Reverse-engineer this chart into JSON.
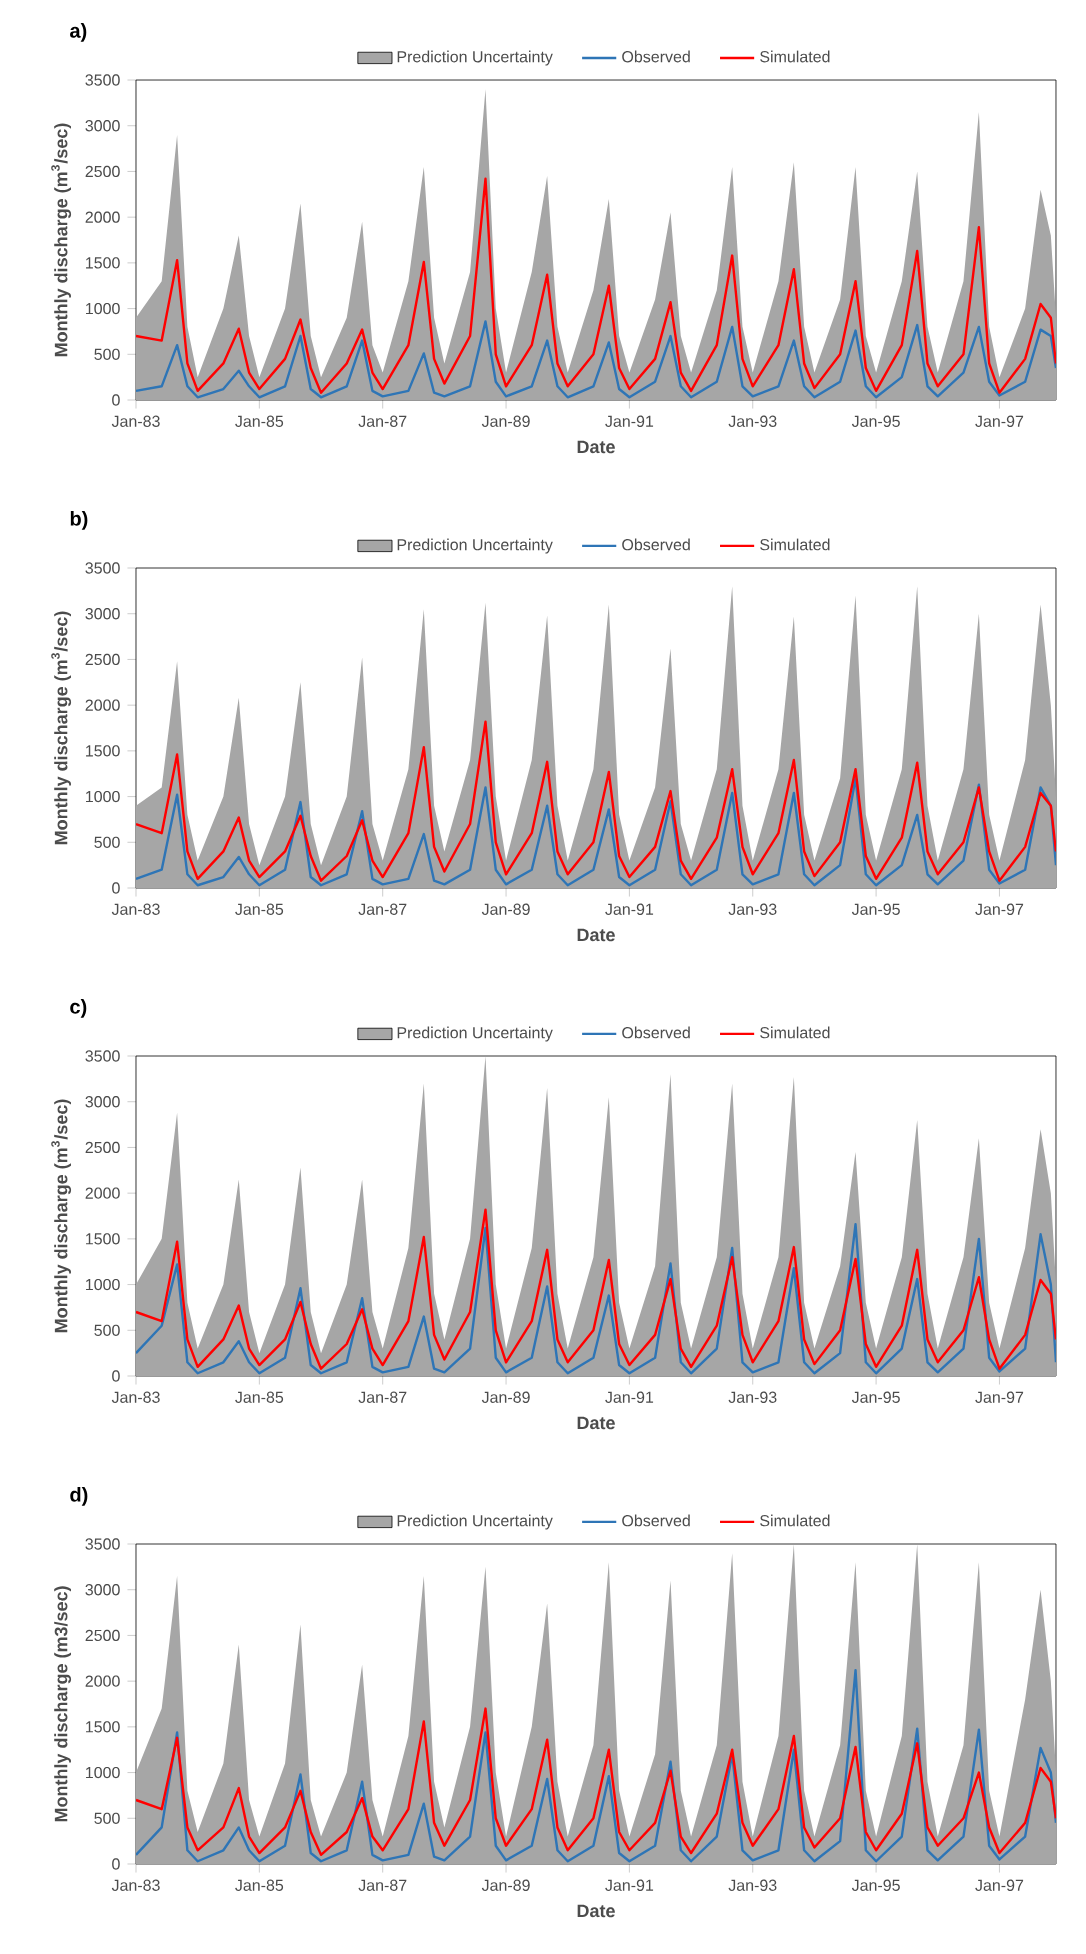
{
  "chart_data": [
    {
      "type": "line",
      "title": "a)",
      "xlabel": "Date",
      "ylabel": "Monthly discharge (m$^{3}$/sec)",
      "legend": "top",
      "x": [
        "1983-01",
        "1983-06",
        "1983-09",
        "1983-11",
        "1984-01",
        "1984-06",
        "1984-09",
        "1984-11",
        "1985-01",
        "1985-06",
        "1985-09",
        "1985-11",
        "1986-01",
        "1986-06",
        "1986-09",
        "1986-11",
        "1987-01",
        "1987-06",
        "1987-09",
        "1987-11",
        "1988-01",
        "1988-06",
        "1988-09",
        "1988-11",
        "1989-01",
        "1989-06",
        "1989-09",
        "1989-11",
        "1990-01",
        "1990-06",
        "1990-09",
        "1990-11",
        "1991-01",
        "1991-06",
        "1991-09",
        "1991-11",
        "1992-01",
        "1992-06",
        "1992-09",
        "1992-11",
        "1993-01",
        "1993-06",
        "1993-09",
        "1993-11",
        "1994-01",
        "1994-06",
        "1994-09",
        "1994-11",
        "1995-01",
        "1995-06",
        "1995-09",
        "1995-11",
        "1996-01",
        "1996-06",
        "1996-09",
        "1996-11",
        "1997-01",
        "1997-06",
        "1997-09",
        "1997-11",
        "1997-12"
      ],
      "xlim": [
        "1983-01",
        "1997-12"
      ],
      "xticks": [
        {
          "value": "1983-01",
          "label": "Jan-83"
        },
        {
          "value": "1985-01",
          "label": "Jan-85"
        },
        {
          "value": "1987-01",
          "label": "Jan-87"
        },
        {
          "value": "1989-01",
          "label": "Jan-89"
        },
        {
          "value": "1991-01",
          "label": "Jan-91"
        },
        {
          "value": "1993-01",
          "label": "Jan-93"
        },
        {
          "value": "1995-01",
          "label": "Jan-95"
        },
        {
          "value": "1997-01",
          "label": "Jan-97"
        }
      ],
      "ylim": [
        0,
        3500
      ],
      "yticks": [
        0,
        500,
        1000,
        1500,
        2000,
        2500,
        3000,
        3500
      ],
      "series": [
        {
          "name": "Prediction Uncertainty",
          "type": "area",
          "color": "#a6a6a6",
          "values": [
            900,
            1300,
            2900,
            800,
            250,
            1000,
            1800,
            700,
            250,
            1000,
            2150,
            700,
            250,
            900,
            1950,
            600,
            300,
            1300,
            2550,
            900,
            400,
            1400,
            3400,
            1000,
            300,
            1400,
            2450,
            800,
            300,
            1200,
            2200,
            700,
            300,
            1100,
            2050,
            700,
            300,
            1200,
            2550,
            800,
            300,
            1300,
            2600,
            800,
            300,
            1100,
            2550,
            700,
            300,
            1300,
            2500,
            800,
            300,
            1300,
            3150,
            800,
            250,
            1000,
            2300,
            1800,
            900
          ]
        },
        {
          "name": "Observed",
          "color": "#2e75b6",
          "values": [
            100,
            150,
            600,
            150,
            30,
            120,
            320,
            150,
            30,
            150,
            700,
            120,
            30,
            150,
            650,
            100,
            40,
            100,
            510,
            80,
            40,
            150,
            860,
            200,
            40,
            150,
            650,
            150,
            30,
            150,
            630,
            120,
            30,
            200,
            700,
            150,
            30,
            200,
            800,
            150,
            40,
            150,
            650,
            150,
            30,
            200,
            760,
            150,
            30,
            250,
            820,
            150,
            40,
            300,
            800,
            200,
            50,
            200,
            770,
            700,
            350
          ]
        },
        {
          "name": "Simulated",
          "color": "#ff0000",
          "values": [
            700,
            650,
            1530,
            400,
            100,
            400,
            780,
            300,
            120,
            450,
            880,
            350,
            80,
            400,
            770,
            300,
            120,
            600,
            1510,
            450,
            180,
            700,
            2420,
            500,
            150,
            600,
            1370,
            400,
            150,
            500,
            1250,
            350,
            120,
            450,
            1070,
            300,
            100,
            600,
            1580,
            450,
            150,
            600,
            1430,
            400,
            130,
            500,
            1300,
            350,
            100,
            600,
            1630,
            400,
            150,
            500,
            1890,
            400,
            80,
            450,
            1050,
            900,
            400
          ]
        }
      ]
    },
    {
      "type": "line",
      "title": "b)",
      "xlabel": "Date",
      "ylabel": "Monthly discharge (m$^{3}$/sec)",
      "legend": "top",
      "x": [
        "1983-01",
        "1983-06",
        "1983-09",
        "1983-11",
        "1984-01",
        "1984-06",
        "1984-09",
        "1984-11",
        "1985-01",
        "1985-06",
        "1985-09",
        "1985-11",
        "1986-01",
        "1986-06",
        "1986-09",
        "1986-11",
        "1987-01",
        "1987-06",
        "1987-09",
        "1987-11",
        "1988-01",
        "1988-06",
        "1988-09",
        "1988-11",
        "1989-01",
        "1989-06",
        "1989-09",
        "1989-11",
        "1990-01",
        "1990-06",
        "1990-09",
        "1990-11",
        "1991-01",
        "1991-06",
        "1991-09",
        "1991-11",
        "1992-01",
        "1992-06",
        "1992-09",
        "1992-11",
        "1993-01",
        "1993-06",
        "1993-09",
        "1993-11",
        "1994-01",
        "1994-06",
        "1994-09",
        "1994-11",
        "1995-01",
        "1995-06",
        "1995-09",
        "1995-11",
        "1996-01",
        "1996-06",
        "1996-09",
        "1996-11",
        "1997-01",
        "1997-06",
        "1997-09",
        "1997-11",
        "1997-12"
      ],
      "xlim": [
        "1983-01",
        "1997-12"
      ],
      "xticks": [
        {
          "value": "1983-01",
          "label": "Jan-83"
        },
        {
          "value": "1985-01",
          "label": "Jan-85"
        },
        {
          "value": "1987-01",
          "label": "Jan-87"
        },
        {
          "value": "1989-01",
          "label": "Jan-89"
        },
        {
          "value": "1991-01",
          "label": "Jan-91"
        },
        {
          "value": "1993-01",
          "label": "Jan-93"
        },
        {
          "value": "1995-01",
          "label": "Jan-95"
        },
        {
          "value": "1997-01",
          "label": "Jan-97"
        }
      ],
      "ylim": [
        0,
        3500
      ],
      "yticks": [
        0,
        500,
        1000,
        1500,
        2000,
        2500,
        3000,
        3500
      ],
      "series": [
        {
          "name": "Prediction Uncertainty",
          "type": "area",
          "color": "#a6a6a6",
          "values": [
            900,
            1100,
            2480,
            800,
            300,
            1000,
            2080,
            700,
            250,
            1000,
            2250,
            700,
            250,
            1000,
            2520,
            700,
            300,
            1300,
            3050,
            900,
            400,
            1400,
            3120,
            1000,
            300,
            1400,
            2980,
            900,
            300,
            1300,
            3100,
            800,
            300,
            1100,
            2620,
            700,
            300,
            1300,
            3300,
            900,
            300,
            1300,
            2970,
            800,
            300,
            1200,
            3200,
            800,
            300,
            1300,
            3300,
            900,
            300,
            1300,
            3000,
            800,
            300,
            1400,
            3100,
            2000,
            1000
          ]
        },
        {
          "name": "Observed",
          "color": "#2e75b6",
          "values": [
            100,
            200,
            1020,
            150,
            30,
            120,
            340,
            150,
            30,
            200,
            940,
            120,
            30,
            150,
            840,
            100,
            40,
            100,
            590,
            80,
            40,
            200,
            1100,
            200,
            40,
            200,
            900,
            150,
            30,
            200,
            860,
            120,
            30,
            200,
            950,
            150,
            30,
            200,
            1040,
            150,
            40,
            150,
            1040,
            150,
            30,
            250,
            1200,
            150,
            30,
            250,
            800,
            150,
            40,
            300,
            1130,
            200,
            50,
            200,
            1100,
            900,
            250
          ]
        },
        {
          "name": "Simulated",
          "color": "#ff0000",
          "values": [
            700,
            600,
            1460,
            400,
            100,
            400,
            770,
            300,
            120,
            400,
            790,
            350,
            80,
            350,
            740,
            300,
            120,
            600,
            1540,
            450,
            180,
            700,
            1820,
            500,
            150,
            600,
            1380,
            400,
            150,
            500,
            1270,
            350,
            120,
            450,
            1060,
            300,
            100,
            550,
            1300,
            450,
            150,
            600,
            1400,
            400,
            130,
            500,
            1300,
            350,
            100,
            550,
            1370,
            400,
            150,
            500,
            1100,
            400,
            80,
            450,
            1040,
            900,
            400
          ]
        }
      ]
    },
    {
      "type": "line",
      "title": "c)",
      "xlabel": "Date",
      "ylabel": "Monthly discharge (m$^{3}$/sec)",
      "legend": "top",
      "x": [
        "1983-01",
        "1983-06",
        "1983-09",
        "1983-11",
        "1984-01",
        "1984-06",
        "1984-09",
        "1984-11",
        "1985-01",
        "1985-06",
        "1985-09",
        "1985-11",
        "1986-01",
        "1986-06",
        "1986-09",
        "1986-11",
        "1987-01",
        "1987-06",
        "1987-09",
        "1987-11",
        "1988-01",
        "1988-06",
        "1988-09",
        "1988-11",
        "1989-01",
        "1989-06",
        "1989-09",
        "1989-11",
        "1990-01",
        "1990-06",
        "1990-09",
        "1990-11",
        "1991-01",
        "1991-06",
        "1991-09",
        "1991-11",
        "1992-01",
        "1992-06",
        "1992-09",
        "1992-11",
        "1993-01",
        "1993-06",
        "1993-09",
        "1993-11",
        "1994-01",
        "1994-06",
        "1994-09",
        "1994-11",
        "1995-01",
        "1995-06",
        "1995-09",
        "1995-11",
        "1996-01",
        "1996-06",
        "1996-09",
        "1996-11",
        "1997-01",
        "1997-06",
        "1997-09",
        "1997-11",
        "1997-12"
      ],
      "xlim": [
        "1983-01",
        "1997-12"
      ],
      "xticks": [
        {
          "value": "1983-01",
          "label": "Jan-83"
        },
        {
          "value": "1985-01",
          "label": "Jan-85"
        },
        {
          "value": "1987-01",
          "label": "Jan-87"
        },
        {
          "value": "1989-01",
          "label": "Jan-89"
        },
        {
          "value": "1991-01",
          "label": "Jan-91"
        },
        {
          "value": "1993-01",
          "label": "Jan-93"
        },
        {
          "value": "1995-01",
          "label": "Jan-95"
        },
        {
          "value": "1997-01",
          "label": "Jan-97"
        }
      ],
      "ylim": [
        0,
        3500
      ],
      "yticks": [
        0,
        500,
        1000,
        1500,
        2000,
        2500,
        3000,
        3500
      ],
      "series": [
        {
          "name": "Prediction Uncertainty",
          "type": "area",
          "color": "#a6a6a6",
          "values": [
            1000,
            1500,
            2880,
            800,
            300,
            1000,
            2150,
            700,
            250,
            1000,
            2280,
            700,
            250,
            1000,
            2150,
            700,
            300,
            1400,
            3200,
            900,
            400,
            1500,
            3500,
            1000,
            300,
            1400,
            3150,
            900,
            300,
            1300,
            3050,
            800,
            300,
            1200,
            3300,
            800,
            300,
            1300,
            3200,
            900,
            300,
            1300,
            3270,
            800,
            300,
            1200,
            2450,
            800,
            300,
            1300,
            2800,
            900,
            300,
            1300,
            2600,
            800,
            300,
            1400,
            2700,
            2000,
            1000
          ]
        },
        {
          "name": "Observed",
          "color": "#2e75b6",
          "values": [
            250,
            550,
            1220,
            150,
            30,
            150,
            380,
            150,
            30,
            200,
            960,
            120,
            30,
            150,
            850,
            100,
            40,
            100,
            650,
            80,
            40,
            300,
            1620,
            200,
            40,
            200,
            980,
            150,
            30,
            200,
            880,
            120,
            30,
            200,
            1230,
            150,
            30,
            300,
            1400,
            150,
            40,
            150,
            1180,
            150,
            30,
            250,
            1660,
            150,
            30,
            300,
            1060,
            150,
            40,
            300,
            1500,
            200,
            50,
            300,
            1550,
            1000,
            150
          ]
        },
        {
          "name": "Simulated",
          "color": "#ff0000",
          "values": [
            700,
            600,
            1470,
            400,
            100,
            400,
            770,
            300,
            120,
            400,
            810,
            350,
            80,
            350,
            730,
            300,
            120,
            600,
            1520,
            450,
            180,
            700,
            1820,
            500,
            150,
            600,
            1380,
            400,
            150,
            500,
            1270,
            350,
            120,
            450,
            1060,
            300,
            100,
            550,
            1300,
            450,
            150,
            600,
            1410,
            400,
            130,
            500,
            1280,
            350,
            100,
            550,
            1380,
            400,
            150,
            500,
            1080,
            400,
            80,
            450,
            1050,
            900,
            400
          ]
        }
      ]
    },
    {
      "type": "line",
      "title": "d)",
      "xlabel": "Date",
      "ylabel": "Monthly discharge (m3/sec)",
      "legend": "top",
      "x": [
        "1983-01",
        "1983-06",
        "1983-09",
        "1983-11",
        "1984-01",
        "1984-06",
        "1984-09",
        "1984-11",
        "1985-01",
        "1985-06",
        "1985-09",
        "1985-11",
        "1986-01",
        "1986-06",
        "1986-09",
        "1986-11",
        "1987-01",
        "1987-06",
        "1987-09",
        "1987-11",
        "1988-01",
        "1988-06",
        "1988-09",
        "1988-11",
        "1989-01",
        "1989-06",
        "1989-09",
        "1989-11",
        "1990-01",
        "1990-06",
        "1990-09",
        "1990-11",
        "1991-01",
        "1991-06",
        "1991-09",
        "1991-11",
        "1992-01",
        "1992-06",
        "1992-09",
        "1992-11",
        "1993-01",
        "1993-06",
        "1993-09",
        "1993-11",
        "1994-01",
        "1994-06",
        "1994-09",
        "1994-11",
        "1995-01",
        "1995-06",
        "1995-09",
        "1995-11",
        "1996-01",
        "1996-06",
        "1996-09",
        "1996-11",
        "1997-01",
        "1997-06",
        "1997-09",
        "1997-11",
        "1997-12"
      ],
      "xlim": [
        "1983-01",
        "1997-12"
      ],
      "xticks": [
        {
          "value": "1983-01",
          "label": "Jan-83"
        },
        {
          "value": "1985-01",
          "label": "Jan-85"
        },
        {
          "value": "1987-01",
          "label": "Jan-87"
        },
        {
          "value": "1989-01",
          "label": "Jan-89"
        },
        {
          "value": "1991-01",
          "label": "Jan-91"
        },
        {
          "value": "1993-01",
          "label": "Jan-93"
        },
        {
          "value": "1995-01",
          "label": "Jan-95"
        },
        {
          "value": "1997-01",
          "label": "Jan-97"
        }
      ],
      "ylim": [
        0,
        3500
      ],
      "yticks": [
        0,
        500,
        1000,
        1500,
        2000,
        2500,
        3000,
        3500
      ],
      "series": [
        {
          "name": "Prediction Uncertainty",
          "type": "area",
          "color": "#a6a6a6",
          "values": [
            1000,
            1700,
            3150,
            800,
            350,
            1100,
            2400,
            700,
            300,
            1100,
            2620,
            700,
            300,
            1000,
            2180,
            700,
            300,
            1400,
            3150,
            900,
            400,
            1500,
            3250,
            1000,
            300,
            1500,
            2850,
            900,
            300,
            1300,
            3300,
            800,
            300,
            1200,
            3100,
            800,
            300,
            1300,
            3400,
            900,
            300,
            1400,
            3500,
            800,
            300,
            1300,
            3300,
            800,
            300,
            1400,
            3500,
            900,
            300,
            1300,
            3300,
            800,
            300,
            1800,
            3000,
            2000,
            1000
          ]
        },
        {
          "name": "Observed",
          "color": "#2e75b6",
          "values": [
            100,
            400,
            1440,
            150,
            30,
            150,
            400,
            150,
            30,
            200,
            980,
            120,
            30,
            150,
            900,
            100,
            40,
            100,
            660,
            80,
            40,
            300,
            1440,
            200,
            40,
            200,
            930,
            150,
            30,
            200,
            960,
            120,
            30,
            200,
            1120,
            150,
            30,
            300,
            1200,
            150,
            40,
            150,
            1250,
            150,
            30,
            250,
            2120,
            150,
            30,
            300,
            1480,
            150,
            40,
            300,
            1470,
            200,
            50,
            300,
            1270,
            1000,
            450
          ]
        },
        {
          "name": "Simulated",
          "color": "#ff0000",
          "values": [
            700,
            600,
            1380,
            400,
            150,
            400,
            830,
            300,
            120,
            400,
            800,
            350,
            100,
            350,
            720,
            300,
            150,
            600,
            1560,
            450,
            200,
            700,
            1700,
            500,
            200,
            600,
            1360,
            400,
            150,
            500,
            1250,
            350,
            150,
            450,
            1020,
            300,
            120,
            550,
            1250,
            450,
            200,
            600,
            1400,
            400,
            180,
            500,
            1280,
            350,
            150,
            550,
            1320,
            400,
            200,
            500,
            1000,
            400,
            120,
            450,
            1050,
            900,
            500
          ]
        }
      ]
    }
  ]
}
